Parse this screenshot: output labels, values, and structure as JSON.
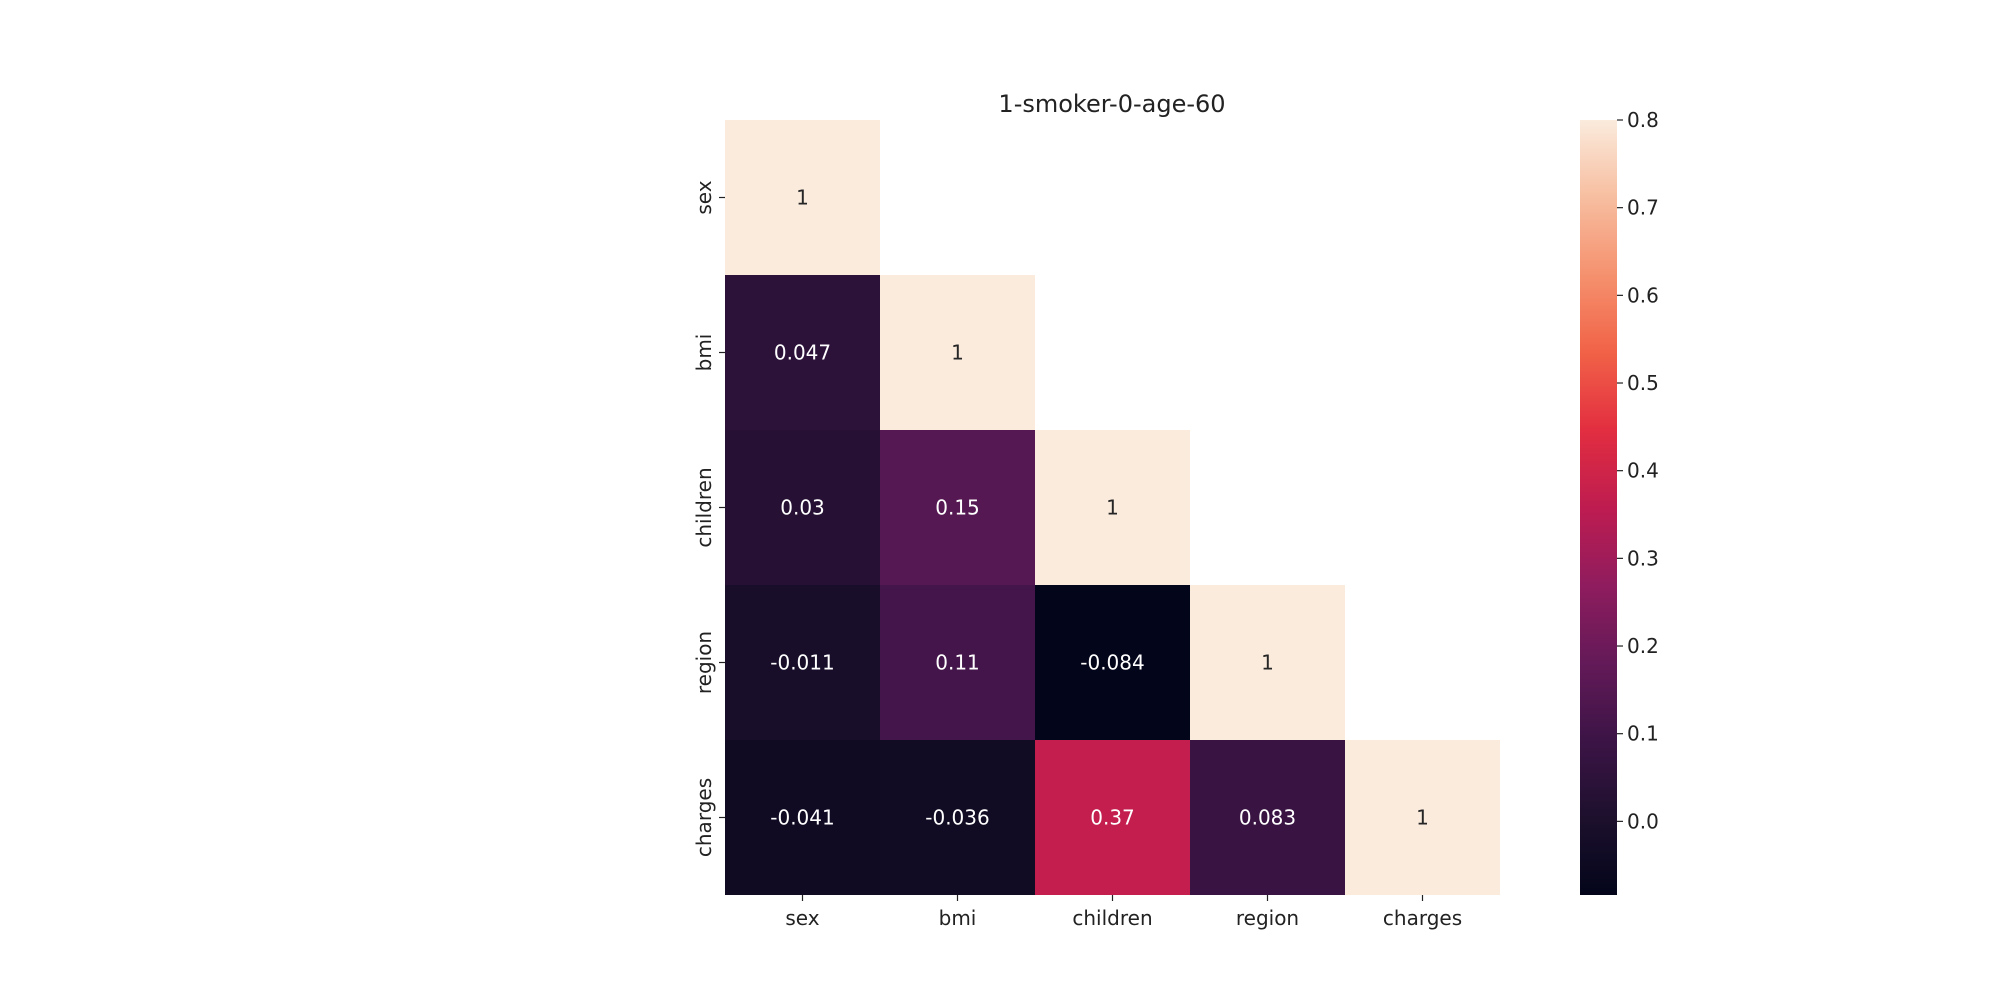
{
  "chart_data": {
    "type": "heatmap",
    "title": "1-smoker-0-age-60",
    "xlabel": "",
    "ylabel": "",
    "x_categories": [
      "sex",
      "bmi",
      "children",
      "region",
      "charges"
    ],
    "y_categories": [
      "sex",
      "bmi",
      "children",
      "region",
      "charges"
    ],
    "mask": "upper-triangle",
    "matrix": [
      [
        "1",
        null,
        null,
        null,
        null
      ],
      [
        "0.047",
        "1",
        null,
        null,
        null
      ],
      [
        "0.03",
        "0.15",
        "1",
        null,
        null
      ],
      [
        "-0.011",
        "0.11",
        "-0.084",
        "1",
        null
      ],
      [
        "-0.041",
        "-0.036",
        "0.37",
        "0.083",
        "1"
      ]
    ],
    "colorscale": "rocket",
    "vmin": -0.084,
    "vmax": 0.8,
    "colorbar": {
      "ticks": [
        "0.0",
        "0.1",
        "0.2",
        "0.3",
        "0.4",
        "0.5",
        "0.6",
        "0.7",
        "0.8"
      ],
      "placement": "right"
    },
    "grid": false
  }
}
